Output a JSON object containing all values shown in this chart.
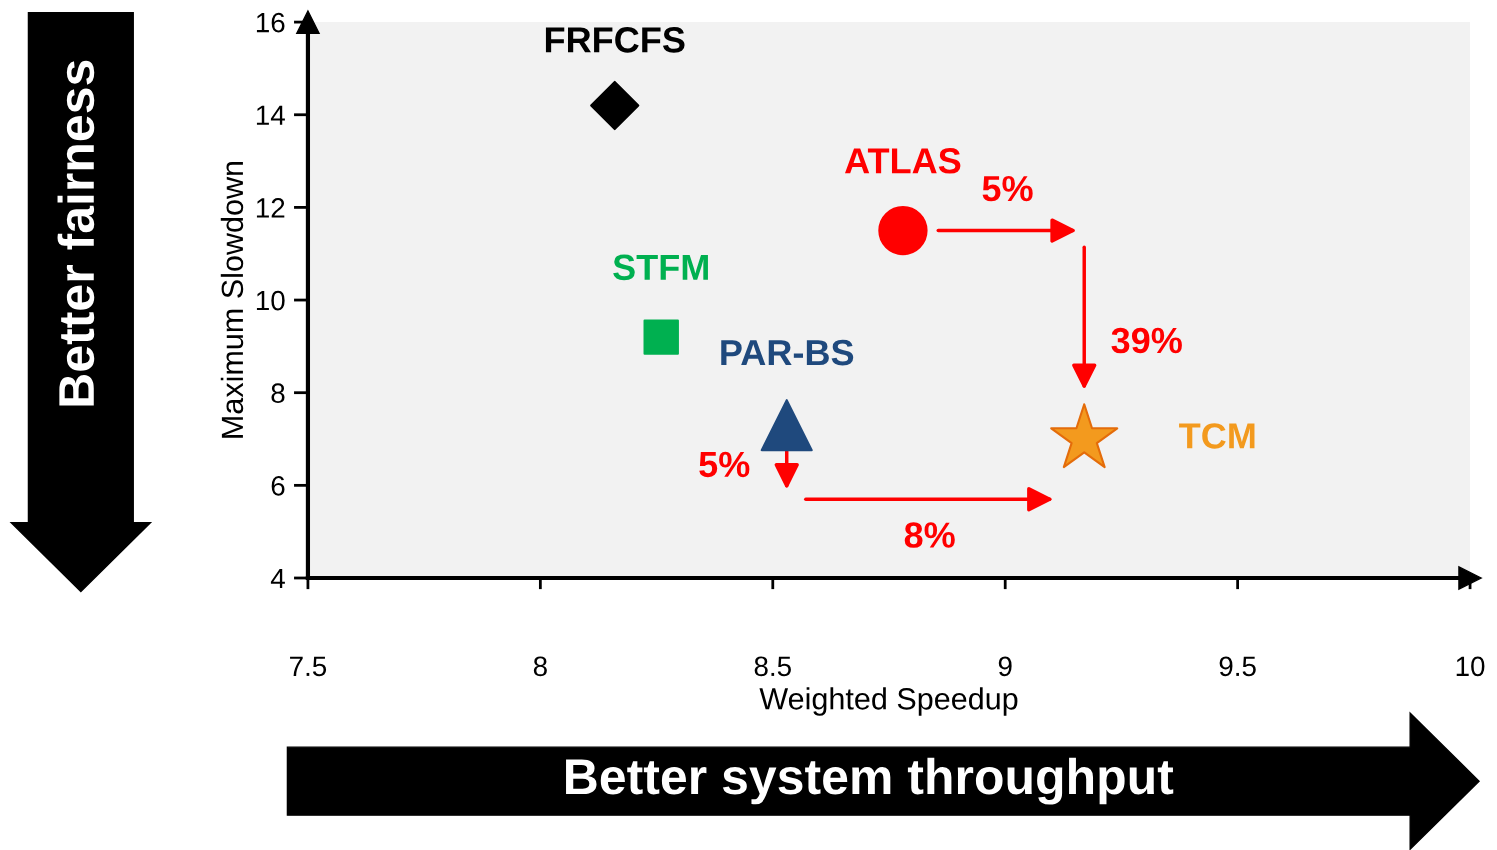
{
  "chart_data": {
    "type": "scatter",
    "xlabel": "Weighted Speedup",
    "ylabel": "Maximum Slowdown",
    "xlim": [
      7.5,
      10
    ],
    "xticks": [
      7.5,
      8,
      8.5,
      9,
      9.5,
      10
    ],
    "ylim": [
      4,
      16
    ],
    "yticks": [
      4,
      6,
      8,
      10,
      12,
      14,
      16
    ],
    "grid": false,
    "series": [
      {
        "name": "FRFCFS",
        "color": "#000000",
        "marker": "diamond",
        "x": [
          8.16
        ],
        "values": [
          14.2
        ]
      },
      {
        "name": "STFM",
        "color": "#00b050",
        "marker": "square",
        "x": [
          8.26
        ],
        "values": [
          9.2
        ]
      },
      {
        "name": "PAR-BS",
        "color": "#1f497d",
        "marker": "triangle",
        "x": [
          8.53
        ],
        "values": [
          7.3
        ]
      },
      {
        "name": "ATLAS",
        "color": "#ff0000",
        "marker": "circle",
        "x": [
          8.78
        ],
        "values": [
          11.5
        ]
      },
      {
        "name": "TCM",
        "color": "#f39a1e",
        "marker": "star",
        "x": [
          9.17
        ],
        "values": [
          7.0
        ]
      }
    ],
    "annotations": [
      "5%",
      "39%",
      "5%",
      "8%",
      "Better fairness",
      "Better system throughput"
    ]
  }
}
